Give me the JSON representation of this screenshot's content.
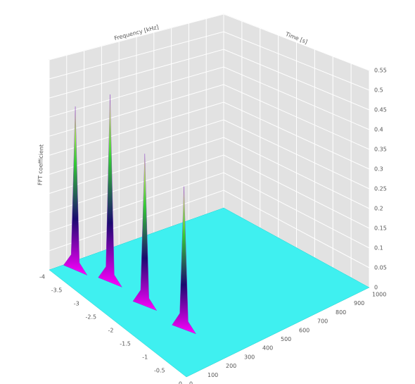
{
  "chart_data": {
    "type": "surface3d",
    "xlabel": "Frequency [kHz]",
    "ylabel": "Time [s]",
    "zlabel": "FFT coefficient",
    "x": [
      -3.75,
      -3.1,
      -2.15,
      -1.15
    ],
    "y": [
      100,
      170,
      180,
      205
    ],
    "values": [
      0.43,
      0.49,
      0.39,
      0.36
    ],
    "floor_color": "#3ff0f0",
    "wall_color": "#e2e2e2",
    "colormap": [
      "#ff00ff",
      "#1a0a6e",
      "#33cc33",
      "#ffff66"
    ],
    "xlim": [
      -4,
      0
    ],
    "xticks": [
      -4,
      -3.5,
      -3,
      -2.5,
      -2,
      -1.5,
      -1,
      -0.5,
      0
    ],
    "ylim": [
      0,
      1000
    ],
    "yticks": [
      0,
      100,
      200,
      300,
      400,
      500,
      600,
      700,
      800,
      900,
      1000
    ],
    "zlim": [
      0,
      0.55
    ],
    "zticks": [
      0,
      0.05,
      0.1,
      0.15,
      0.2,
      0.25,
      0.3,
      0.35,
      0.4,
      0.45,
      0.5,
      0.55
    ],
    "grid": true
  }
}
